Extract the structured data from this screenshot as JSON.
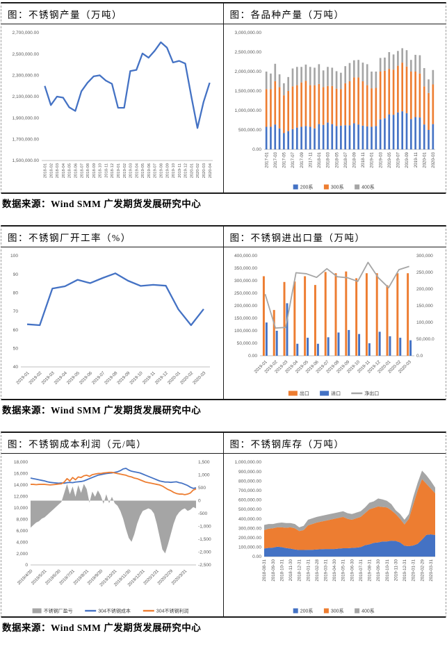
{
  "source_note": "数据来源：Wind SMM  广发期货发展研究中心",
  "colors": {
    "blue": "#4472C4",
    "orange": "#ED7D31",
    "gray": "#A5A5A5",
    "axis_text": "#595959",
    "baseline": "#BFBFBF"
  },
  "chart_data": [
    {
      "type": "line",
      "title": "图：不锈钢产量（万吨）",
      "categories": [
        "2018-01",
        "2018-02",
        "2018-03",
        "2018-04",
        "2018-05",
        "2018-06",
        "2018-07",
        "2018-08",
        "2018-09",
        "2018-10",
        "2018-11",
        "2018-12",
        "2019-01",
        "2019-02",
        "2019-03",
        "2019-04",
        "2019-05",
        "2019-06",
        "2019-07",
        "2019-08",
        "2019-09",
        "2019-10",
        "2019-11",
        "2019-12",
        "2020-01",
        "2020-02",
        "2020-03",
        "2020-04"
      ],
      "y_left": {
        "min": 1500000,
        "max": 2700000,
        "labels": [
          "2,700,000.00",
          "2,500,000.00",
          "2,300,000.00",
          "2,100,000.00",
          "1,900,000.00",
          "1,700,000.00",
          "1,500,000.00"
        ]
      },
      "series": [
        {
          "name": "不锈钢产量",
          "color": "#4472C4",
          "kind": "line",
          "values": [
            2200000,
            2020000,
            2100000,
            2090000,
            2000000,
            1965000,
            2150000,
            2230000,
            2290000,
            2300000,
            2250000,
            2220000,
            1995000,
            1995000,
            2340000,
            2350000,
            2505000,
            2465000,
            2530000,
            2610000,
            2560000,
            2420000,
            2435000,
            2410000,
            2100000,
            1805000,
            2050000,
            2230000
          ]
        }
      ]
    },
    {
      "type": "stacked_bar",
      "title": "图：各品种产量（万吨）",
      "categories": [
        "2017-01",
        "2017-02",
        "2017-03",
        "2017-04",
        "2017-05",
        "2017-06",
        "2017-07",
        "2017-08",
        "2017-09",
        "2017-10",
        "2017-11",
        "2017-12",
        "2018-01",
        "2018-02",
        "2018-03",
        "2018-04",
        "2018-05",
        "2018-06",
        "2018-07",
        "2018-08",
        "2018-09",
        "2018-10",
        "2018-11",
        "2018-12",
        "2019-01",
        "2019-02",
        "2019-03",
        "2019-04",
        "2019-05",
        "2019-06",
        "2019-07",
        "2019-08",
        "2019-09",
        "2019-10",
        "2019-11",
        "2019-12",
        "2020-01",
        "2020-02",
        "2020-03"
      ],
      "x_tick_labels": [
        "2017-01",
        "2017-03",
        "2017-05",
        "2017-07",
        "2017-09",
        "2017-11",
        "2018-01",
        "2018-03",
        "2018-05",
        "2018-07",
        "2018-09",
        "2018-11",
        "2019-01",
        "2019-03",
        "2019-05",
        "2019-07",
        "2019-09",
        "2019-11",
        "2020-01",
        "2020-03"
      ],
      "y_left": {
        "min": 0,
        "max": 3000000,
        "labels": [
          "3,000,000.00",
          "2,500,000.00",
          "2,000,000.00",
          "1,500,000.00",
          "1,000,000.00",
          "500,000.00",
          "0.00"
        ]
      },
      "series": [
        {
          "name": "200系",
          "color": "#4472C4",
          "kind": "bar",
          "values": [
            580000,
            580000,
            640000,
            540000,
            420000,
            470000,
            520000,
            560000,
            580000,
            600000,
            580000,
            540000,
            650000,
            630000,
            690000,
            650000,
            600000,
            610000,
            620000,
            620000,
            670000,
            640000,
            610000,
            590000,
            580000,
            600000,
            770000,
            800000,
            900000,
            890000,
            950000,
            980000,
            930000,
            780000,
            830000,
            820000,
            640000,
            500000,
            650000
          ]
        },
        {
          "name": "300系",
          "color": "#ED7D31",
          "kind": "bar",
          "values": [
            970000,
            970000,
            1110000,
            1060000,
            970000,
            1030000,
            1100000,
            1090000,
            1140000,
            1160000,
            1070000,
            1110000,
            1030000,
            970000,
            940000,
            980000,
            960000,
            940000,
            1080000,
            1130000,
            1180000,
            1210000,
            1140000,
            1060000,
            990000,
            980000,
            1230000,
            1220000,
            1170000,
            1160000,
            1200000,
            1250000,
            1200000,
            1220000,
            1170000,
            1130000,
            980000,
            950000,
            1020000
          ]
        },
        {
          "name": "400系",
          "color": "#A5A5A5",
          "kind": "bar",
          "values": [
            450000,
            400000,
            450000,
            330000,
            310000,
            360000,
            460000,
            470000,
            400000,
            420000,
            470000,
            450000,
            510000,
            430000,
            490000,
            470000,
            450000,
            420000,
            440000,
            470000,
            440000,
            450000,
            480000,
            540000,
            430000,
            420000,
            350000,
            340000,
            430000,
            390000,
            380000,
            370000,
            420000,
            300000,
            430000,
            470000,
            470000,
            350000,
            370000
          ]
        }
      ]
    },
    {
      "type": "line",
      "title": "图：不锈钢厂开工率（%）",
      "categories": [
        "2019-01",
        "2019-02",
        "2019-03",
        "2019-04",
        "2019-05",
        "2019-06",
        "2019-07",
        "2019-08",
        "2019-09",
        "2019-10",
        "2019-11",
        "2019-12",
        "2020-01",
        "2020-02",
        "2020-03"
      ],
      "y_left": {
        "min": 40,
        "max": 100,
        "labels": [
          "100",
          "90",
          "80",
          "70",
          "60",
          "50",
          "40"
        ]
      },
      "series": [
        {
          "name": "不锈钢厂开工率",
          "color": "#4472C4",
          "kind": "line",
          "values": [
            63,
            62.5,
            82.3,
            83.5,
            87,
            85.2,
            88,
            90.5,
            86.5,
            83.7,
            84.3,
            83.8,
            71,
            62.5,
            71.2
          ]
        }
      ]
    },
    {
      "type": "combo_bar_line",
      "title": "图：不锈钢进出口量（万吨）",
      "categories": [
        "2019-01",
        "2019-02",
        "2019-03",
        "2019-04",
        "2019-05",
        "2019-06",
        "2019-07",
        "2019-08",
        "2019-09",
        "2019-10",
        "2019-11",
        "2019-12",
        "2020-01",
        "2020-02",
        "2020-03"
      ],
      "y_left": {
        "min": 0,
        "max": 400000,
        "labels": [
          "400,000.00",
          "350,000.00",
          "300,000.00",
          "250,000.00",
          "200,000.00",
          "150,000.00",
          "100,000.00",
          "50,000.00",
          "0.00"
        ]
      },
      "y_right": {
        "min": 0,
        "max": 300000,
        "labels": [
          "300,000",
          "250,000",
          "200,000",
          "150,000",
          "100,000",
          "50,000.0",
          "0.0"
        ]
      },
      "series": [
        {
          "name": "出口",
          "color": "#ED7D31",
          "kind": "bar",
          "axis": "left",
          "values": [
            318000,
            183000,
            295000,
            297000,
            318000,
            283000,
            335000,
            330000,
            337000,
            310000,
            330000,
            330000,
            282000,
            330000,
            330000
          ]
        },
        {
          "name": "进口",
          "color": "#4472C4",
          "kind": "bar",
          "axis": "left",
          "values": [
            133000,
            100000,
            210000,
            48000,
            72000,
            48000,
            74000,
            93000,
            103000,
            87000,
            50000,
            96000,
            78000,
            72000,
            62000
          ]
        },
        {
          "name": "净出口",
          "color": "#A5A5A5",
          "kind": "line",
          "axis": "right",
          "values": [
            185000,
            83000,
            85000,
            249000,
            246000,
            235000,
            261000,
            237000,
            234000,
            223000,
            280000,
            234000,
            204000,
            258000,
            268000
          ]
        }
      ]
    },
    {
      "type": "area_lines",
      "title": "图：不锈钢成本利润（元/吨）",
      "x_tick_labels": [
        "2019/4/30",
        "2019/5/31",
        "2019/6/30",
        "2019/7/31",
        "2019/8/31",
        "2019/9/30",
        "2019/10/31",
        "2019/11/30",
        "2019/12/31",
        "2020/1/31",
        "2020/2/29",
        "2020/3/31"
      ],
      "y_left": {
        "min": 0,
        "max": 18000,
        "labels": [
          "18,000",
          "16,000",
          "14,000",
          "12,000",
          "10,000",
          "8,000",
          "6,000",
          "4,000",
          "2,000",
          "0"
        ]
      },
      "y_right": {
        "min": -2500,
        "max": 1500,
        "labels": [
          "1,500",
          "1,000",
          "500",
          "0",
          "-500",
          "-1,000",
          "-1,500",
          "-2,000",
          "-2,500"
        ]
      },
      "series": [
        {
          "name": "不锈钢厂盈亏",
          "color": "#A5A5A5",
          "kind": "area",
          "axis": "right",
          "values": [
            -1050,
            -950,
            -850,
            -800,
            -700,
            -650,
            -550,
            -450,
            -350,
            -250,
            -150,
            -50,
            300,
            650,
            250,
            550,
            150,
            600,
            300,
            650,
            450,
            -80,
            350,
            150,
            400,
            200,
            -120,
            250,
            -100,
            150,
            -100,
            -200,
            -400,
            -700,
            -1100,
            -1450,
            -1600,
            -1300,
            -900,
            -600,
            -400,
            -350,
            -300,
            -350,
            -500,
            -900,
            -1400,
            -1900,
            -2050,
            -1700,
            -1300,
            -900,
            -600,
            -450,
            -350,
            -300,
            -400,
            -350,
            -250,
            -300
          ]
        },
        {
          "name": "304不锈钢成本",
          "color": "#4472C4",
          "kind": "line",
          "axis": "left",
          "values": [
            15200,
            15100,
            15000,
            14900,
            14800,
            14700,
            14550,
            14450,
            14400,
            14350,
            14300,
            14350,
            14300,
            14400,
            14450,
            14400,
            14500,
            14550,
            14600,
            14700,
            14900,
            15100,
            15300,
            15500,
            15700,
            15800,
            15900,
            16000,
            16050,
            16100,
            16200,
            16300,
            16500,
            16800,
            16900,
            16600,
            16400,
            16300,
            16200,
            16100,
            15900,
            15700,
            15500,
            15300,
            15100,
            14900,
            14700,
            14600,
            14500,
            14500,
            14450,
            14500,
            14550,
            14400,
            14300,
            14100,
            13900,
            13600,
            13400,
            13500
          ]
        },
        {
          "name": "304不锈钢利润",
          "color": "#ED7D31",
          "kind": "line",
          "axis": "left",
          "values": [
            14100,
            14100,
            14050,
            14100,
            14100,
            14100,
            14050,
            14000,
            14050,
            14100,
            14150,
            14200,
            14500,
            15100,
            14700,
            15300,
            14900,
            15400,
            15300,
            15600,
            15700,
            15500,
            15800,
            15900,
            16000,
            16000,
            16100,
            16150,
            16200,
            16200,
            16100,
            16000,
            15900,
            15800,
            15700,
            15500,
            15400,
            15200,
            15100,
            14900,
            14700,
            14500,
            14400,
            14300,
            14200,
            14100,
            14000,
            13800,
            13500,
            13200,
            13000,
            12700,
            12500,
            12400,
            12400,
            12300,
            12400,
            12600,
            13100,
            13300
          ]
        }
      ]
    },
    {
      "type": "stacked_area",
      "title": "图：不锈钢库存（万吨）",
      "x_tick_labels": [
        "2018-08-31",
        "2018-09-30",
        "2018-10-31",
        "2018-11-30",
        "2018-12-31",
        "2019-01-31",
        "2019-02-28",
        "2019-03-31",
        "2019-04-30",
        "2019-05-31",
        "2019-06-30",
        "2019-07-31",
        "2019-08-31",
        "2019-09-30",
        "2019-10-31",
        "2019-11-30",
        "2019-12-31",
        "2020-01-31",
        "2020-02-29",
        "2020-03-31"
      ],
      "y_left": {
        "min": 0,
        "max": 1000000,
        "labels": [
          "1,000,000.00",
          "900,000.00",
          "800,000.00",
          "700,000.00",
          "600,000.00",
          "500,000.00",
          "400,000.00",
          "300,000.00",
          "200,000.00",
          "100,000.00",
          "0.00"
        ]
      },
      "series": [
        {
          "name": "200系",
          "color": "#4472C4",
          "kind": "area",
          "values": [
            85000,
            92000,
            95000,
            105000,
            100000,
            90000,
            85000,
            75000,
            70000,
            70000,
            72000,
            72000,
            75000,
            78000,
            80000,
            80000,
            80000,
            85000,
            88000,
            88000,
            92000,
            95000,
            100000,
            120000,
            130000,
            145000,
            150000,
            160000,
            160000,
            168000,
            165000,
            150000,
            115000,
            110000,
            118000,
            135000,
            180000,
            230000,
            235000,
            228000
          ]
        },
        {
          "name": "300系",
          "color": "#ED7D31",
          "kind": "area",
          "values": [
            195000,
            203000,
            205000,
            205000,
            210000,
            215000,
            225000,
            225000,
            200000,
            210000,
            258000,
            273000,
            285000,
            292000,
            300000,
            310000,
            320000,
            325000,
            332000,
            312000,
            298000,
            310000,
            320000,
            340000,
            370000,
            370000,
            380000,
            365000,
            360000,
            322000,
            285000,
            250000,
            225000,
            290000,
            432000,
            565000,
            640000,
            540000,
            485000,
            442000
          ]
        },
        {
          "name": "400系",
          "color": "#A5A5A5",
          "kind": "area",
          "values": [
            55000,
            50000,
            45000,
            45000,
            50000,
            50000,
            45000,
            45000,
            40000,
            45000,
            60000,
            60000,
            60000,
            60000,
            60000,
            60000,
            60000,
            60000,
            60000,
            60000,
            60000,
            60000,
            60000,
            60000,
            70000,
            70000,
            85000,
            80000,
            70000,
            65000,
            40000,
            50000,
            50000,
            50000,
            80000,
            80000,
            90000,
            90000,
            80000,
            60000
          ]
        }
      ]
    }
  ]
}
